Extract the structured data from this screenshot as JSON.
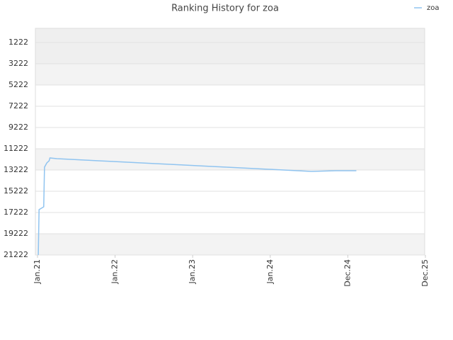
{
  "chart_data": {
    "type": "line",
    "title": "Ranking History for zoa",
    "x": [
      0.01,
      0.02,
      0.08,
      0.09,
      0.12,
      0.15,
      0.16,
      0.25,
      0.43,
      0.61,
      0.79,
      0.98,
      1.16,
      1.34,
      1.52,
      1.71,
      1.89,
      2.07,
      2.25,
      2.44,
      2.62,
      2.8,
      2.98,
      3.17,
      3.35,
      3.53,
      3.85,
      4.11
    ],
    "series": [
      {
        "name": "zoa",
        "color": "#90c4f0",
        "values": [
          21222,
          16953,
          16687,
          12953,
          12553,
          12353,
          12087,
          12153,
          12220,
          12287,
          12353,
          12420,
          12487,
          12553,
          12620,
          12687,
          12753,
          12820,
          12887,
          12953,
          13020,
          13087,
          13153,
          13220,
          13287,
          13353,
          13287,
          13287
        ]
      }
    ],
    "xlim": [
      0,
      5
    ],
    "xticks": [
      {
        "value": 0,
        "label": "Jan.21"
      },
      {
        "value": 1,
        "label": "Jan.22"
      },
      {
        "value": 2,
        "label": "Jan.23"
      },
      {
        "value": 3,
        "label": "Jan.24"
      },
      {
        "value": 4,
        "label": "Dec.24"
      },
      {
        "value": 5,
        "label": "Dec.25"
      }
    ],
    "ylim": [
      21222,
      0
    ],
    "yticks": [
      1222,
      3222,
      5222,
      7222,
      9222,
      11222,
      13222,
      15222,
      17222,
      19222,
      21222
    ],
    "grid": true,
    "legend": "top-right"
  }
}
